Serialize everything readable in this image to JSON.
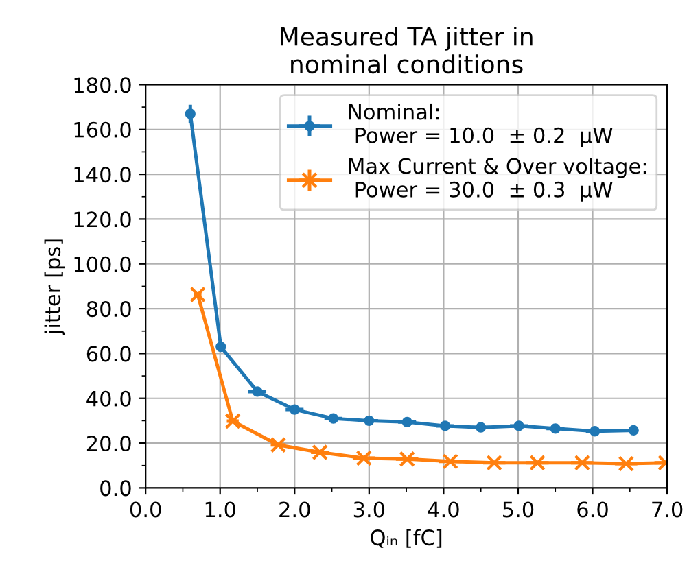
{
  "chart_data": {
    "type": "line",
    "title": "Measured TA jitter in\nnominal conditions",
    "xlabel": "Qᵢₙ [fC]",
    "ylabel": "jitter [ps]",
    "xlim": [
      0,
      7
    ],
    "ylim": [
      0,
      180
    ],
    "xticks": [
      {
        "value": 0,
        "label": "0.0"
      },
      {
        "value": 1,
        "label": "1.0"
      },
      {
        "value": 2,
        "label": "2.0"
      },
      {
        "value": 3,
        "label": "3.0"
      },
      {
        "value": 4,
        "label": "4.0"
      },
      {
        "value": 5,
        "label": "5.0"
      },
      {
        "value": 6,
        "label": "6.0"
      },
      {
        "value": 7,
        "label": "7.0"
      }
    ],
    "yticks": [
      {
        "value": 0,
        "label": "0.0"
      },
      {
        "value": 20,
        "label": "20.0"
      },
      {
        "value": 40,
        "label": "40.0"
      },
      {
        "value": 60,
        "label": "60.0"
      },
      {
        "value": 80,
        "label": "80.0"
      },
      {
        "value": 100,
        "label": "100.0"
      },
      {
        "value": 120,
        "label": "120.0"
      },
      {
        "value": 140,
        "label": "140.0"
      },
      {
        "value": 160,
        "label": "160.0"
      },
      {
        "value": 180,
        "label": "180.0"
      }
    ],
    "grid": true,
    "legend": "top right",
    "series": [
      {
        "name": "Nominal:\n Power = 10.0  ± 0.2  μW",
        "color": "#1f77b4",
        "marker": "circle",
        "x": [
          0.6,
          1.01,
          1.5,
          2.0,
          2.52,
          3.0,
          3.51,
          4.02,
          4.5,
          5.01,
          5.5,
          6.03,
          6.55
        ],
        "values": [
          167,
          63,
          43,
          35,
          31,
          30,
          29.4,
          27.7,
          27,
          27.7,
          26.5,
          25.3,
          25.7
        ],
        "errors": [
          4,
          1,
          1,
          1,
          1,
          1,
          1,
          1,
          1,
          1,
          1,
          1,
          1
        ],
        "xerrors": [
          0.05,
          0.05,
          0.12,
          0.12,
          0.12,
          0.12,
          0.12,
          0.12,
          0.12,
          0.12,
          0.12,
          0.12,
          0.05
        ]
      },
      {
        "name": "Max Current & Over voltage:\n Power = 30.0  ± 0.3  μW",
        "color": "#ff7f0e",
        "marker": "cross",
        "x": [
          0.7,
          1.17,
          1.78,
          2.34,
          2.93,
          3.51,
          4.09,
          4.68,
          5.26,
          5.86,
          6.45,
          6.98
        ],
        "values": [
          86.3,
          29.8,
          19.2,
          15.9,
          13.3,
          12.9,
          11.8,
          11.2,
          11.2,
          11.2,
          10.8,
          11.2
        ],
        "errors": [
          1,
          1,
          1,
          1,
          1,
          1,
          1,
          1,
          1,
          1,
          1,
          1
        ],
        "xerrors": [
          0.05,
          0.08,
          0.1,
          0.12,
          0.15,
          0.15,
          0.15,
          0.15,
          0.15,
          0.15,
          0.15,
          0.15
        ]
      }
    ]
  }
}
